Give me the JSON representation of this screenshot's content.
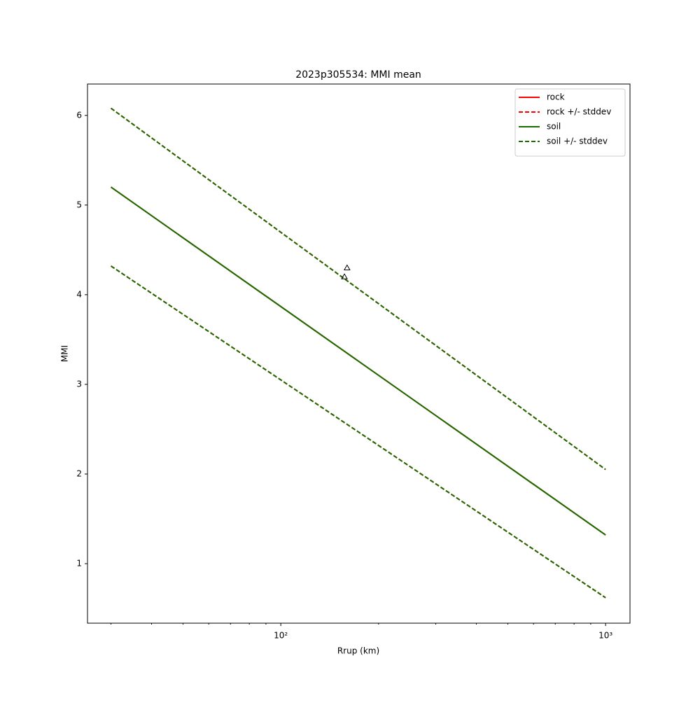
{
  "chart_data": {
    "type": "line",
    "title": "2023p305534: MMI mean",
    "xlabel": "Rrup (km)",
    "ylabel": "MMI",
    "xscale": "log",
    "xlim": [
      25.4,
      1189
    ],
    "ylim": [
      0.336,
      6.35
    ],
    "xticks": [
      {
        "value": 100,
        "label": "10²"
      },
      {
        "value": 1000,
        "label": "10³"
      }
    ],
    "xminorticks": [
      30,
      40,
      50,
      60,
      70,
      80,
      90,
      200,
      300,
      400,
      500,
      600,
      700,
      800,
      900
    ],
    "yticks": [
      1,
      2,
      3,
      4,
      5,
      6
    ],
    "legend": "upper right",
    "x": [
      30,
      1000
    ],
    "series": [
      {
        "name": "rock",
        "color": "#ff0000",
        "dashed": false,
        "values": [
          5.2,
          1.32
        ]
      },
      {
        "name": "rock +/- stddev",
        "color": "#ff0000",
        "dashed": true,
        "values": [
          6.08,
          2.05
        ]
      },
      {
        "color": "#ff0000",
        "dashed": true,
        "values": [
          4.32,
          0.62
        ]
      },
      {
        "name": "soil",
        "color": "#1a6e00",
        "dashed": false,
        "values": [
          5.2,
          1.32
        ]
      },
      {
        "name": "soil +/- stddev",
        "color": "#1a6e00",
        "dashed": true,
        "values": [
          6.08,
          2.05
        ]
      },
      {
        "color": "#1a6e00",
        "dashed": true,
        "values": [
          4.32,
          0.62
        ]
      }
    ],
    "points": {
      "color": "#000000",
      "x": [
        160,
        157
      ],
      "values": [
        4.3,
        4.2
      ]
    }
  }
}
